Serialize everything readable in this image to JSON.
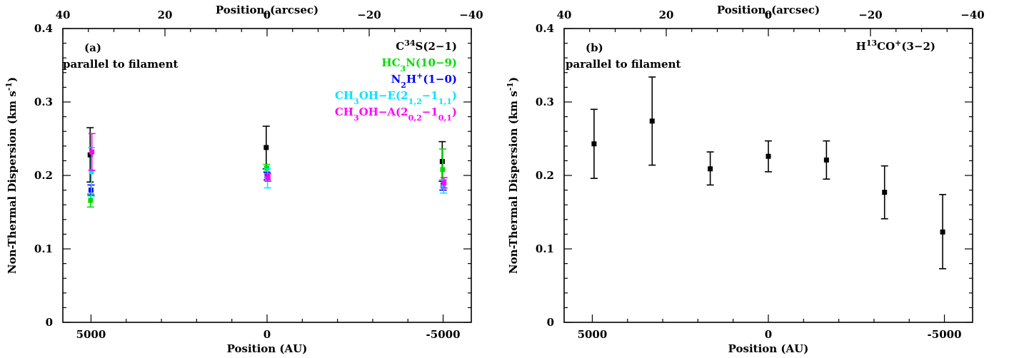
{
  "chart_data": [
    {
      "type": "scatter",
      "panel_label": "(a)",
      "annotation": "parallel to filament",
      "xlabel": "Position (AU)",
      "ylabel": "Non-Thermal Dispersion (km s",
      "ylabel_sup": "-1",
      "ylabel_end": ")",
      "top_xlabel": "Position",
      "top_xlabel_sub": "0",
      "top_xlabel_end": "(arcsec)",
      "xlim": [
        5800,
        -5800
      ],
      "ylim": [
        0,
        0.4
      ],
      "top_xlim": [
        40,
        -40
      ],
      "xticks": [
        5000,
        0,
        -5000
      ],
      "xtick_labels": [
        "5000",
        "0",
        "-5000"
      ],
      "yticks": [
        0,
        0.1,
        0.2,
        0.3,
        0.4
      ],
      "ytick_labels": [
        "0",
        "0.1",
        "0.2",
        "0.3",
        "0.4"
      ],
      "top_xticks": [
        40,
        20,
        0,
        -20,
        -40
      ],
      "top_xtick_labels": [
        "40",
        "20",
        "0",
        "−20",
        "−40"
      ],
      "series": [
        {
          "name": "C34S(2-1)",
          "legend": [
            {
              "t": "C"
            },
            {
              "t": "34",
              "s": "sup"
            },
            {
              "t": "S(2−1)"
            }
          ],
          "color": "#000000",
          "points": [
            {
              "x": 5000,
              "y": 0.228,
              "lo": 0.191,
              "hi": 0.265
            },
            {
              "x": 0,
              "y": 0.238,
              "lo": 0.209,
              "hi": 0.267
            },
            {
              "x": -5000,
              "y": 0.219,
              "lo": 0.192,
              "hi": 0.246
            }
          ]
        },
        {
          "name": "HC3N(10-9)",
          "legend": [
            {
              "t": "HC"
            },
            {
              "t": "3",
              "s": "sub"
            },
            {
              "t": "N(10−9)"
            }
          ],
          "color": "#00dd00",
          "points": [
            {
              "x": 5000,
              "y": 0.166,
              "lo": 0.157,
              "hi": 0.175
            },
            {
              "x": 0,
              "y": 0.21,
              "lo": 0.205,
              "hi": 0.215
            },
            {
              "x": -5000,
              "y": 0.208,
              "lo": 0.18,
              "hi": 0.236
            }
          ]
        },
        {
          "name": "N2H+(1-0)",
          "legend": [
            {
              "t": "N"
            },
            {
              "t": "2",
              "s": "sub"
            },
            {
              "t": "H"
            },
            {
              "t": "+",
              "s": "sup"
            },
            {
              "t": "(1−0)"
            }
          ],
          "color": "#0000ff",
          "points": [
            {
              "x": 5000,
              "y": 0.18,
              "lo": 0.173,
              "hi": 0.187
            },
            {
              "x": 0,
              "y": 0.199,
              "lo": 0.194,
              "hi": 0.204
            },
            {
              "x": -5000,
              "y": 0.187,
              "lo": 0.18,
              "hi": 0.194
            }
          ]
        },
        {
          "name": "CH3OH-E(2_1,2-1_1,1)",
          "legend": [
            {
              "t": "CH"
            },
            {
              "t": "3",
              "s": "sub"
            },
            {
              "t": "OH−E(2"
            },
            {
              "t": "1,2",
              "s": "sub"
            },
            {
              "t": "−1"
            },
            {
              "t": "1,1",
              "s": "sub"
            },
            {
              "t": ")"
            }
          ],
          "color": "#00e5ff",
          "points": [
            {
              "x": 5000,
              "y": 0.205,
              "lo": 0.172,
              "hi": 0.238
            },
            {
              "x": 0,
              "y": 0.196,
              "lo": 0.183,
              "hi": 0.209
            },
            {
              "x": -5000,
              "y": 0.185,
              "lo": 0.176,
              "hi": 0.194
            }
          ]
        },
        {
          "name": "CH3OH-A(2_0,2-1_0,1)",
          "legend": [
            {
              "t": "CH"
            },
            {
              "t": "3",
              "s": "sub"
            },
            {
              "t": "OH−A(2"
            },
            {
              "t": "0,2",
              "s": "sub"
            },
            {
              "t": "−1"
            },
            {
              "t": "0,1",
              "s": "sub"
            },
            {
              "t": ")"
            }
          ],
          "color": "#ff00ff",
          "points": [
            {
              "x": 5000,
              "y": 0.232,
              "lo": 0.207,
              "hi": 0.257
            },
            {
              "x": 0,
              "y": 0.197,
              "lo": 0.192,
              "hi": 0.202
            },
            {
              "x": -5000,
              "y": 0.19,
              "lo": 0.183,
              "hi": 0.197
            }
          ]
        }
      ]
    },
    {
      "type": "scatter",
      "panel_label": "(b)",
      "annotation": "parallel to filament",
      "xlabel": "Position (AU)",
      "ylabel": "Non-Thermal Dispersion (km s",
      "ylabel_sup": "-1",
      "ylabel_end": ")",
      "top_xlabel": "Position",
      "top_xlabel_sub": "0",
      "top_xlabel_end": "(arcsec)",
      "xlim": [
        5800,
        -5800
      ],
      "ylim": [
        0,
        0.4
      ],
      "top_xlim": [
        40,
        -40
      ],
      "xticks": [
        5000,
        0,
        -5000
      ],
      "xtick_labels": [
        "5000",
        "0",
        "-5000"
      ],
      "yticks": [
        0,
        0.1,
        0.2,
        0.3,
        0.4
      ],
      "ytick_labels": [
        "0",
        "0.1",
        "0.2",
        "0.3",
        "0.4"
      ],
      "top_xticks": [
        40,
        20,
        0,
        -20,
        -40
      ],
      "top_xtick_labels": [
        "40",
        "20",
        "0",
        "−20",
        "−40"
      ],
      "series": [
        {
          "name": "H13CO+(3-2)",
          "legend": [
            {
              "t": "H"
            },
            {
              "t": "13",
              "s": "sup"
            },
            {
              "t": "CO"
            },
            {
              "t": "+",
              "s": "sup"
            },
            {
              "t": "(3−2)"
            }
          ],
          "color": "#000000",
          "points": [
            {
              "x": 4950,
              "y": 0.243,
              "lo": 0.196,
              "hi": 0.29
            },
            {
              "x": 3300,
              "y": 0.274,
              "lo": 0.214,
              "hi": 0.334
            },
            {
              "x": 1650,
              "y": 0.209,
              "lo": 0.187,
              "hi": 0.232
            },
            {
              "x": 0,
              "y": 0.226,
              "lo": 0.205,
              "hi": 0.247
            },
            {
              "x": -1650,
              "y": 0.221,
              "lo": 0.195,
              "hi": 0.247
            },
            {
              "x": -3300,
              "y": 0.177,
              "lo": 0.141,
              "hi": 0.213
            },
            {
              "x": -4950,
              "y": 0.123,
              "lo": 0.073,
              "hi": 0.174
            }
          ]
        }
      ]
    }
  ]
}
